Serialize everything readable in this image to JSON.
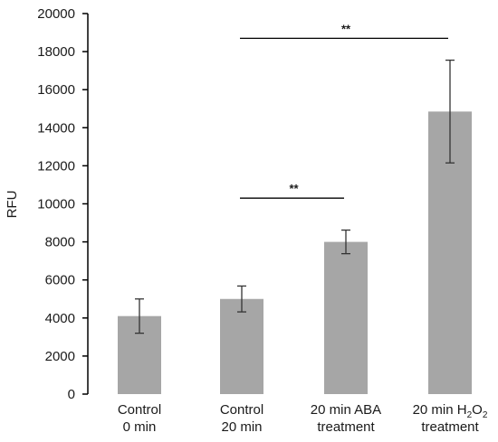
{
  "chart_data": {
    "type": "bar",
    "title": "",
    "xlabel": "",
    "ylabel": "RFU",
    "ylim": [
      0,
      20000
    ],
    "yticks": [
      0,
      2000,
      4000,
      6000,
      8000,
      10000,
      12000,
      14000,
      16000,
      18000,
      20000
    ],
    "grid": false,
    "bar_color": "#a6a6a6",
    "categories": [
      {
        "lines": [
          {
            "text": "Control"
          },
          {
            "text": "0 min"
          }
        ]
      },
      {
        "lines": [
          {
            "text": "Control"
          },
          {
            "text": "20 min"
          }
        ]
      },
      {
        "lines": [
          {
            "text": "20 min ABA"
          },
          {
            "text": "treatment"
          }
        ]
      },
      {
        "lines": [
          {
            "text": "20 min H",
            "sub": "2",
            "after": "O",
            "sub2": "2"
          },
          {
            "text": "treatment"
          }
        ]
      }
    ],
    "values": [
      4100,
      5000,
      8000,
      14850
    ],
    "errors": [
      900,
      680,
      620,
      2700
    ],
    "significance": [
      {
        "from": 1,
        "to": 2,
        "label": "**",
        "y": 10300
      },
      {
        "from": 1,
        "to": 3,
        "label": "**",
        "y": 18700
      }
    ]
  }
}
